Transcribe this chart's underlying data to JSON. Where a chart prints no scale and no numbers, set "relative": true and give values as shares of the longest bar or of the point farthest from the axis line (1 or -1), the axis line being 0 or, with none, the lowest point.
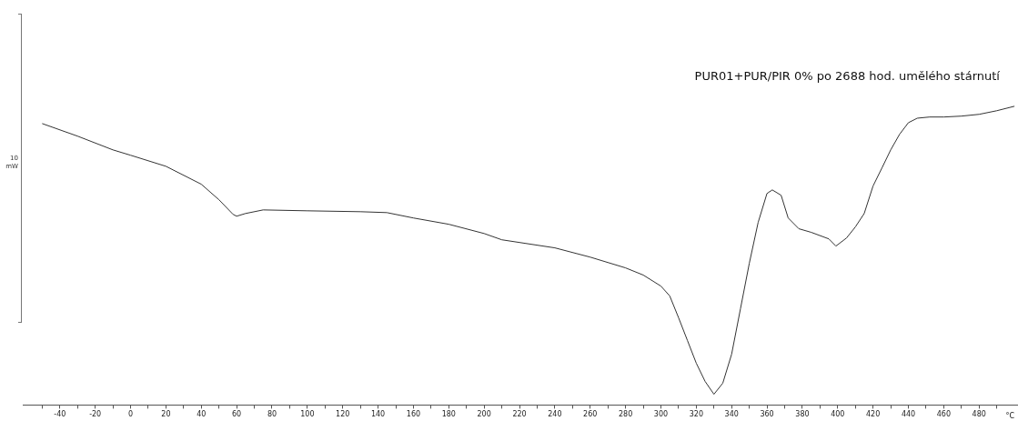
{
  "chart_data": {
    "type": "line",
    "title": "PUR01+PUR/PIR 0% po 2688 hod. umělého stárnutí",
    "ylabel": "10 mW",
    "xlabel": "°C",
    "relative": true,
    "grid": false,
    "legend": false,
    "marker": "none",
    "line_style": "solid",
    "xlim": [
      -61,
      502
    ],
    "xticks": [
      {
        "value": -50,
        "label": null
      },
      -40,
      {
        "value": -30,
        "label": null
      },
      -20,
      {
        "value": -10,
        "label": null
      },
      0,
      {
        "value": 10,
        "label": null
      },
      20,
      {
        "value": 30,
        "label": null
      },
      40,
      {
        "value": 50,
        "label": null
      },
      60,
      {
        "value": 70,
        "label": null
      },
      80,
      {
        "value": 90,
        "label": null
      },
      100,
      {
        "value": 110,
        "label": null
      },
      120,
      {
        "value": 130,
        "label": null
      },
      140,
      {
        "value": 150,
        "label": null
      },
      160,
      {
        "value": 170,
        "label": null
      },
      180,
      {
        "value": 190,
        "label": null
      },
      200,
      {
        "value": 210,
        "label": null
      },
      220,
      {
        "value": 230,
        "label": null
      },
      240,
      {
        "value": 250,
        "label": null
      },
      260,
      {
        "value": 270,
        "label": null
      },
      280,
      {
        "value": 290,
        "label": null
      },
      300,
      {
        "value": 310,
        "label": null
      },
      320,
      {
        "value": 330,
        "label": null
      },
      340,
      {
        "value": 350,
        "label": null
      },
      360,
      {
        "value": 370,
        "label": null
      },
      380,
      {
        "value": 390,
        "label": null
      },
      400,
      {
        "value": 410,
        "label": null
      },
      420,
      {
        "value": 430,
        "label": null
      },
      440,
      {
        "value": 450,
        "label": null
      },
      460,
      {
        "value": 470,
        "label": null
      },
      480,
      {
        "value": 490,
        "label": null
      }
    ],
    "series": [
      {
        "color": "#333333",
        "x": [
          -50,
          -30,
          -10,
          0,
          20,
          40,
          50,
          58,
          60,
          65,
          75,
          100,
          130,
          145,
          160,
          180,
          200,
          210,
          240,
          260,
          280,
          290,
          300,
          305,
          310,
          315,
          320,
          325,
          330,
          335,
          340,
          345,
          350,
          355,
          360,
          363,
          368,
          372,
          378,
          385,
          395,
          399,
          405,
          410,
          415,
          420,
          425,
          430,
          435,
          440,
          445,
          452,
          460,
          470,
          480,
          490,
          500
        ],
        "values": [
          0.942,
          0.9,
          0.854,
          0.836,
          0.799,
          0.739,
          0.687,
          0.638,
          0.632,
          0.641,
          0.653,
          0.65,
          0.647,
          0.644,
          0.626,
          0.605,
          0.574,
          0.553,
          0.526,
          0.495,
          0.459,
          0.435,
          0.398,
          0.365,
          0.292,
          0.216,
          0.14,
          0.079,
          0.036,
          0.073,
          0.17,
          0.322,
          0.474,
          0.611,
          0.708,
          0.72,
          0.702,
          0.626,
          0.59,
          0.578,
          0.556,
          0.532,
          0.559,
          0.596,
          0.641,
          0.733,
          0.793,
          0.854,
          0.906,
          0.945,
          0.96,
          0.964,
          0.964,
          0.967,
          0.973,
          0.985,
          1
        ]
      }
    ]
  }
}
